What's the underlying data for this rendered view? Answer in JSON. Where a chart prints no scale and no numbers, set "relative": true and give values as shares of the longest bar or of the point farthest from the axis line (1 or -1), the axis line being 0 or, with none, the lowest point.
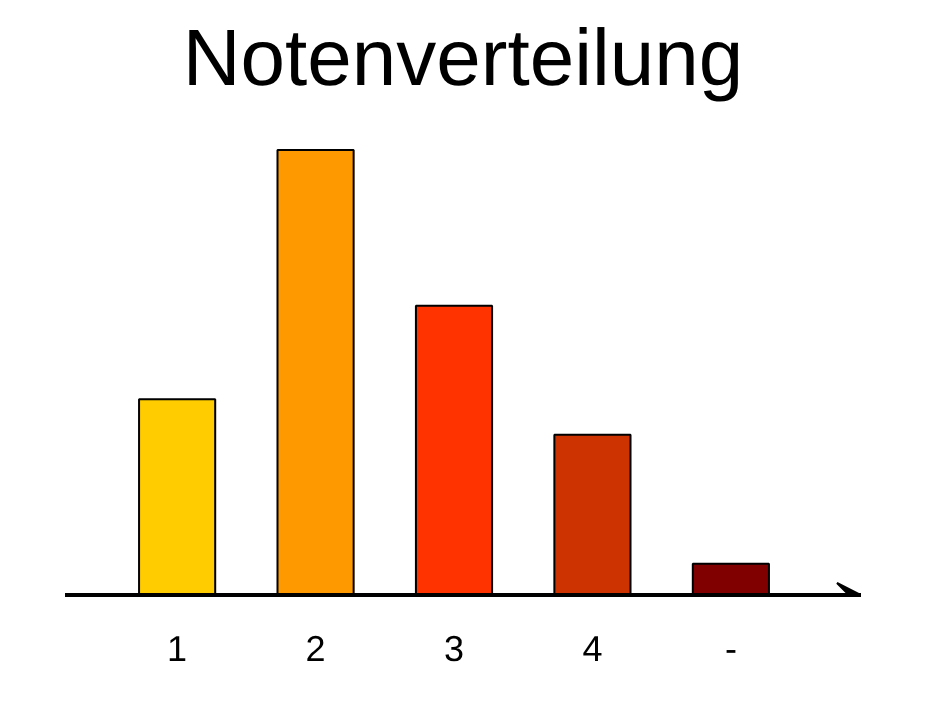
{
  "chart_data": {
    "type": "bar",
    "title": "Notenverteilung",
    "relative": true,
    "categories": [
      "1",
      "2",
      "3",
      "4",
      "-"
    ],
    "values": [
      0.44,
      1,
      0.65,
      0.36,
      0.07
    ],
    "colors": [
      "#ffcc00",
      "#ff9900",
      "#ff3300",
      "#cc3300",
      "#800000"
    ],
    "grid": false
  }
}
